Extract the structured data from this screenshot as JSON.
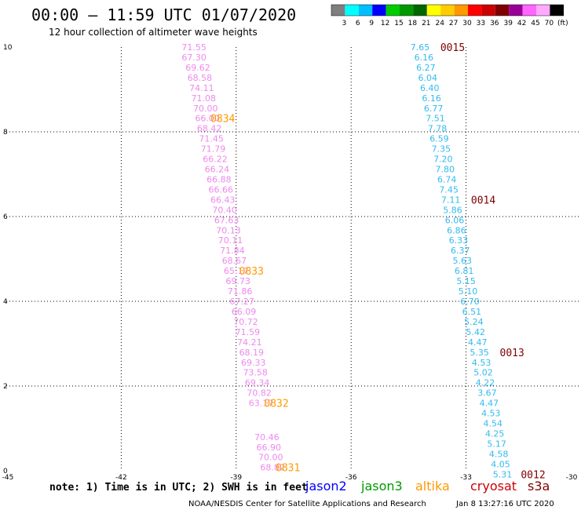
{
  "header": {
    "title": "00:00 – 11:59 UTC 01/07/2020",
    "subtitle": "12 hour collection of altimeter wave heights"
  },
  "color_scale": {
    "labels": [
      "3",
      "6",
      "9",
      "12",
      "15",
      "18",
      "21",
      "24",
      "27",
      "30",
      "33",
      "36",
      "39",
      "42",
      "45",
      "70",
      "(ft)"
    ],
    "colors": [
      "#7f7f7f",
      "#00ffff",
      "#00bfff",
      "#0000ff",
      "#00cc00",
      "#009900",
      "#006600",
      "#ffff00",
      "#ffcc00",
      "#ff9900",
      "#ff0000",
      "#cc0000",
      "#800000",
      "#990099",
      "#ff66ff",
      "#ffaaff",
      "#000000"
    ]
  },
  "footer": {
    "note": "note: 1) Time is in UTC; 2) SWH is in feet",
    "credit": "NOAA/NESDIS Center for Satellite Applications and Research",
    "timestamp": "Jan  8 13:27:16 UTC 2020",
    "legend": [
      {
        "name": "jason2",
        "color": "#0000ff"
      },
      {
        "name": "jason3",
        "color": "#009900"
      },
      {
        "name": "altika",
        "color": "#ff9900"
      },
      {
        "name": "cryosat",
        "color": "#cc0000"
      },
      {
        "name": "s3a",
        "color": "#800000"
      }
    ]
  },
  "chart_data": {
    "type": "scatter",
    "title": "00:00 – 11:59 UTC 01/07/2020",
    "xlim": [
      -45,
      -30
    ],
    "ylim": [
      0,
      10
    ],
    "x_ticks": [
      "-45",
      "-42",
      "-39",
      "-36",
      "-33",
      "-30"
    ],
    "y_ticks": [
      "0",
      "2",
      "4",
      "6",
      "8",
      "10"
    ],
    "grid": true,
    "series": [
      {
        "color": "#ee88ee",
        "points": [
          {
            "x": -40.1,
            "y": 10.0,
            "v": "71.55"
          },
          {
            "x": -40.1,
            "y": 9.76,
            "v": "67.30"
          },
          {
            "x": -40.0,
            "y": 9.52,
            "v": "69.62"
          },
          {
            "x": -39.95,
            "y": 9.28,
            "v": "68.58"
          },
          {
            "x": -39.9,
            "y": 9.04,
            "v": "74.11"
          },
          {
            "x": -39.85,
            "y": 8.8,
            "v": "71.08"
          },
          {
            "x": -39.8,
            "y": 8.56,
            "v": "70.00"
          },
          {
            "x": -39.75,
            "y": 8.32,
            "v": "66.00"
          },
          {
            "x": -39.7,
            "y": 8.08,
            "v": "68.42"
          },
          {
            "x": -39.65,
            "y": 7.84,
            "v": "71.45"
          },
          {
            "x": -39.6,
            "y": 7.6,
            "v": "71.79"
          },
          {
            "x": -39.55,
            "y": 7.36,
            "v": "66.22"
          },
          {
            "x": -39.5,
            "y": 7.12,
            "v": "66.24"
          },
          {
            "x": -39.45,
            "y": 6.88,
            "v": "66.88"
          },
          {
            "x": -39.4,
            "y": 6.64,
            "v": "66.66"
          },
          {
            "x": -39.35,
            "y": 6.4,
            "v": "66.43"
          },
          {
            "x": -39.3,
            "y": 6.16,
            "v": "70.40"
          },
          {
            "x": -39.25,
            "y": 5.92,
            "v": "67.63"
          },
          {
            "x": -39.2,
            "y": 5.68,
            "v": "70.13"
          },
          {
            "x": -39.15,
            "y": 5.44,
            "v": "70.11"
          },
          {
            "x": -39.1,
            "y": 5.2,
            "v": "71.84"
          },
          {
            "x": -39.05,
            "y": 4.96,
            "v": "68.67"
          },
          {
            "x": -39.0,
            "y": 4.72,
            "v": "65.17"
          },
          {
            "x": -38.95,
            "y": 4.48,
            "v": "69.73"
          },
          {
            "x": -38.9,
            "y": 4.24,
            "v": "71.86"
          },
          {
            "x": -38.85,
            "y": 4.0,
            "v": "67.27"
          },
          {
            "x": -38.8,
            "y": 3.76,
            "v": "66.09"
          },
          {
            "x": -38.75,
            "y": 3.52,
            "v": "70.72"
          },
          {
            "x": -38.7,
            "y": 3.28,
            "v": "71.59"
          },
          {
            "x": -38.65,
            "y": 3.04,
            "v": "74.21"
          },
          {
            "x": -38.6,
            "y": 2.8,
            "v": "68.19"
          },
          {
            "x": -38.55,
            "y": 2.56,
            "v": "69.33"
          },
          {
            "x": -38.5,
            "y": 2.32,
            "v": "73.58"
          },
          {
            "x": -38.45,
            "y": 2.08,
            "v": "69.34"
          },
          {
            "x": -38.4,
            "y": 1.84,
            "v": "70.82"
          },
          {
            "x": -38.35,
            "y": 1.6,
            "v": "63.17"
          },
          {
            "x": -38.2,
            "y": 0.8,
            "v": "70.46"
          },
          {
            "x": -38.15,
            "y": 0.56,
            "v": "66.90"
          },
          {
            "x": -38.1,
            "y": 0.32,
            "v": "70.00"
          },
          {
            "x": -38.05,
            "y": 0.08,
            "v": "68.82"
          }
        ]
      },
      {
        "color": "#33bbee",
        "points": [
          {
            "x": -34.2,
            "y": 10.0,
            "v": "7.65"
          },
          {
            "x": -34.1,
            "y": 9.76,
            "v": "6.16"
          },
          {
            "x": -34.05,
            "y": 9.52,
            "v": "6.27"
          },
          {
            "x": -34.0,
            "y": 9.28,
            "v": "6.04"
          },
          {
            "x": -33.95,
            "y": 9.04,
            "v": "6.40"
          },
          {
            "x": -33.9,
            "y": 8.8,
            "v": "6.16"
          },
          {
            "x": -33.85,
            "y": 8.56,
            "v": "6.77"
          },
          {
            "x": -33.8,
            "y": 8.32,
            "v": "7.51"
          },
          {
            "x": -33.75,
            "y": 8.08,
            "v": "7.78"
          },
          {
            "x": -33.7,
            "y": 7.84,
            "v": "6.59"
          },
          {
            "x": -33.65,
            "y": 7.6,
            "v": "7.35"
          },
          {
            "x": -33.6,
            "y": 7.36,
            "v": "7.20"
          },
          {
            "x": -33.55,
            "y": 7.12,
            "v": "7.80"
          },
          {
            "x": -33.5,
            "y": 6.88,
            "v": "6.74"
          },
          {
            "x": -33.45,
            "y": 6.64,
            "v": "7.45"
          },
          {
            "x": -33.4,
            "y": 6.4,
            "v": "7.11"
          },
          {
            "x": -33.35,
            "y": 6.16,
            "v": "5.86"
          },
          {
            "x": -33.3,
            "y": 5.92,
            "v": "6.06"
          },
          {
            "x": -33.25,
            "y": 5.68,
            "v": "6.86"
          },
          {
            "x": -33.2,
            "y": 5.44,
            "v": "6.33"
          },
          {
            "x": -33.15,
            "y": 5.2,
            "v": "6.37"
          },
          {
            "x": -33.1,
            "y": 4.96,
            "v": "5.63"
          },
          {
            "x": -33.05,
            "y": 4.72,
            "v": "6.81"
          },
          {
            "x": -33.0,
            "y": 4.48,
            "v": "5.15"
          },
          {
            "x": -32.95,
            "y": 4.24,
            "v": "5.10"
          },
          {
            "x": -32.9,
            "y": 4.0,
            "v": "6.70"
          },
          {
            "x": -32.85,
            "y": 3.76,
            "v": "6.51"
          },
          {
            "x": -32.8,
            "y": 3.52,
            "v": "5.24"
          },
          {
            "x": -32.75,
            "y": 3.28,
            "v": "5.42"
          },
          {
            "x": -32.7,
            "y": 3.04,
            "v": "4.47"
          },
          {
            "x": -32.65,
            "y": 2.8,
            "v": "5.35"
          },
          {
            "x": -32.6,
            "y": 2.56,
            "v": "4.53"
          },
          {
            "x": -32.55,
            "y": 2.32,
            "v": "5.02"
          },
          {
            "x": -32.5,
            "y": 2.08,
            "v": "4.22"
          },
          {
            "x": -32.45,
            "y": 1.84,
            "v": "3.67"
          },
          {
            "x": -32.4,
            "y": 1.6,
            "v": "4.47"
          },
          {
            "x": -32.35,
            "y": 1.36,
            "v": "4.53"
          },
          {
            "x": -32.3,
            "y": 1.12,
            "v": "4.54"
          },
          {
            "x": -32.25,
            "y": 0.88,
            "v": "4.25"
          },
          {
            "x": -32.2,
            "y": 0.64,
            "v": "5.17"
          },
          {
            "x": -32.15,
            "y": 0.4,
            "v": "4.58"
          },
          {
            "x": -32.1,
            "y": 0.16,
            "v": "4.05"
          },
          {
            "x": -32.05,
            "y": -0.08,
            "v": "5.31"
          }
        ]
      }
    ],
    "time_labels": [
      {
        "x": -39.35,
        "y": 8.32,
        "v": "0834",
        "color": "#ff9900"
      },
      {
        "x": -38.6,
        "y": 4.72,
        "v": "0833",
        "color": "#ff9900"
      },
      {
        "x": -37.95,
        "y": 1.6,
        "v": "0832",
        "color": "#ff9900"
      },
      {
        "x": -37.65,
        "y": 0.08,
        "v": "0831",
        "color": "#ff9900"
      },
      {
        "x": -33.35,
        "y": 10.0,
        "v": "0015",
        "color": "#800000"
      },
      {
        "x": -32.55,
        "y": 6.4,
        "v": "0014",
        "color": "#800000"
      },
      {
        "x": -31.8,
        "y": 2.8,
        "v": "0013",
        "color": "#800000"
      },
      {
        "x": -31.25,
        "y": -0.08,
        "v": "0012",
        "color": "#800000"
      }
    ]
  }
}
